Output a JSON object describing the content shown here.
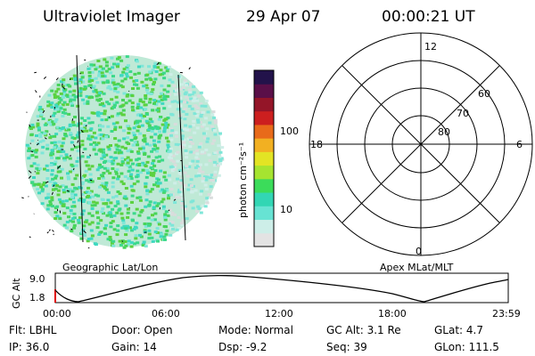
{
  "header": {
    "title": "Ultraviolet Imager",
    "date": "29 Apr 07",
    "time": "00:00:21 UT"
  },
  "left_panel": {
    "label": "Geographic Lat/Lon"
  },
  "colorbar": {
    "unit_label": "photon cm⁻²s⁻¹",
    "ticks": [
      "100",
      "10"
    ],
    "colors": [
      "#e3e3e3",
      "#cdeee8",
      "#67e3d3",
      "#32d6b4",
      "#3bdc5a",
      "#a6e430",
      "#e3e424",
      "#f2b022",
      "#e86a1a",
      "#cc1f1f",
      "#941528",
      "#5a0f48",
      "#22124a"
    ]
  },
  "polar_plot": {
    "label": "Apex MLat/MLT",
    "hour_labels": {
      "top": "12",
      "left": "18",
      "right": "6",
      "bottom": "0"
    },
    "lat_labels": [
      "60",
      "70",
      "80"
    ]
  },
  "altitude_plot": {
    "ylabel": "GC Alt",
    "y_ticks": [
      "9.0",
      "1.8"
    ],
    "x_ticks": [
      "00:00",
      "06:00",
      "12:00",
      "18:00",
      "23:59"
    ]
  },
  "info_rows": [
    {
      "flt": "Flt: LBHL",
      "door": "Door: Open",
      "mode": "Mode: Normal",
      "gcalt": "GC Alt: 3.1 Re",
      "glat": "GLat:  4.7"
    },
    {
      "ip": "IP: 36.0",
      "gain": "Gain: 14",
      "dsp": "Dsp:   -9.2",
      "seq": "Seq: 39",
      "glon": "GLon: 111.5"
    }
  ]
}
